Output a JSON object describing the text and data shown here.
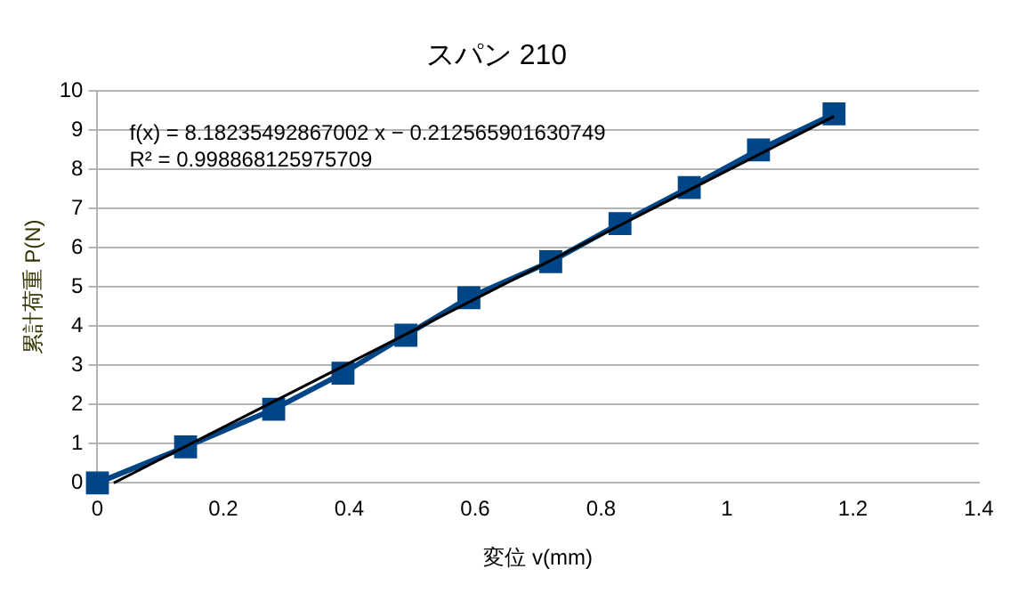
{
  "chart_data": {
    "type": "line",
    "title": "スパン 210",
    "xlabel": "変位 v(mm)",
    "ylabel": "累計荷重 P(N)",
    "xlim": [
      0,
      1.4
    ],
    "xticks": [
      0,
      0.2,
      0.4,
      0.6,
      0.8,
      1,
      1.2,
      1.4
    ],
    "ylim": [
      0,
      10
    ],
    "yticks": [
      0,
      1,
      2,
      3,
      4,
      5,
      6,
      7,
      8,
      9,
      10
    ],
    "grid": "y",
    "legend": false,
    "annotations": [
      "f(x) = 8.18235492867002 x − 0.212565901630749",
      "R² = 0.998868125975709"
    ],
    "series": [
      {
        "type": "line",
        "color": "#004586",
        "marker": "square",
        "x": [
          0,
          0.14,
          0.28,
          0.39,
          0.49,
          0.59,
          0.72,
          0.83,
          0.94,
          1.05,
          1.17
        ],
        "values": [
          0,
          0.92,
          1.88,
          2.8,
          3.77,
          4.73,
          5.65,
          6.62,
          7.54,
          8.5,
          9.42
        ]
      },
      {
        "type": "line",
        "color": "#000000",
        "marker": "none",
        "x": [
          0.026,
          1.17
        ],
        "values": [
          0,
          9.36
        ]
      }
    ]
  }
}
